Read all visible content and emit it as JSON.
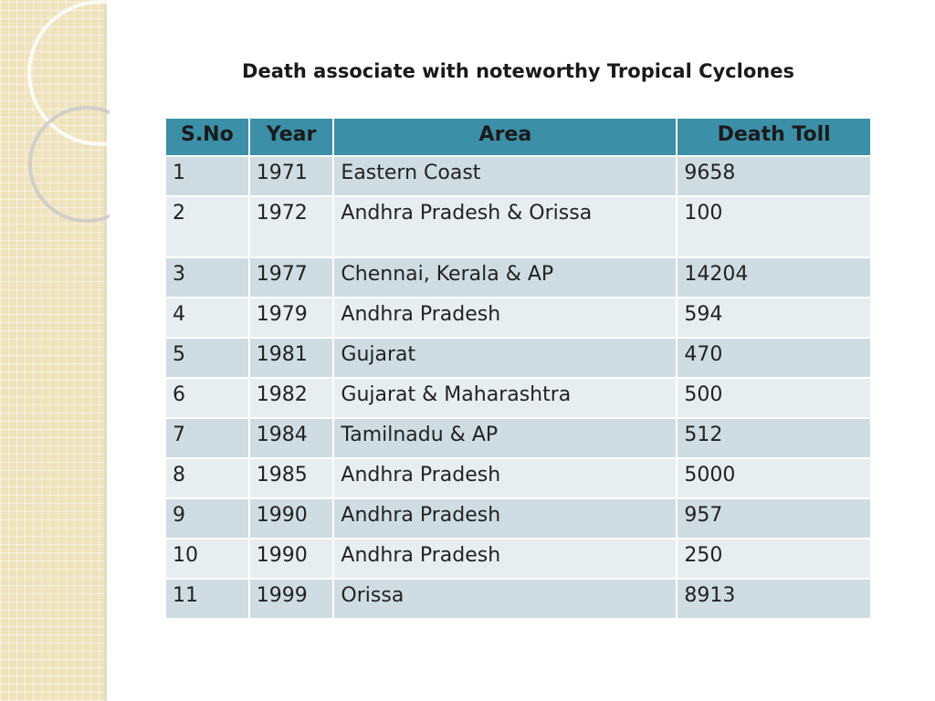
{
  "title": "Death associate with noteworthy Tropical Cyclones",
  "table": {
    "header": [
      "S.No",
      "Year",
      "Area",
      "Death Toll"
    ],
    "rows": [
      [
        "1",
        "1971",
        "Eastern Coast",
        "9658"
      ],
      [
        "2",
        "1972",
        "Andhra Pradesh & Orissa",
        "100"
      ],
      [
        "3",
        "1977",
        "Chennai, Kerala & AP",
        "14204"
      ],
      [
        "4",
        "1979",
        "Andhra Pradesh",
        "594"
      ],
      [
        "5",
        "1981",
        "Gujarat",
        "470"
      ],
      [
        "6",
        "1982",
        "Gujarat & Maharashtra",
        "500"
      ],
      [
        "7",
        "1984",
        "Tamilnadu & AP",
        "512"
      ],
      [
        "8",
        "1985",
        "Andhra Pradesh",
        "5000"
      ],
      [
        "9",
        "1990",
        "Andhra Pradesh",
        "957"
      ],
      [
        "10",
        "1990",
        "Andhra Pradesh",
        "250"
      ],
      [
        "11",
        "1999",
        "Orissa",
        "8913"
      ]
    ]
  }
}
